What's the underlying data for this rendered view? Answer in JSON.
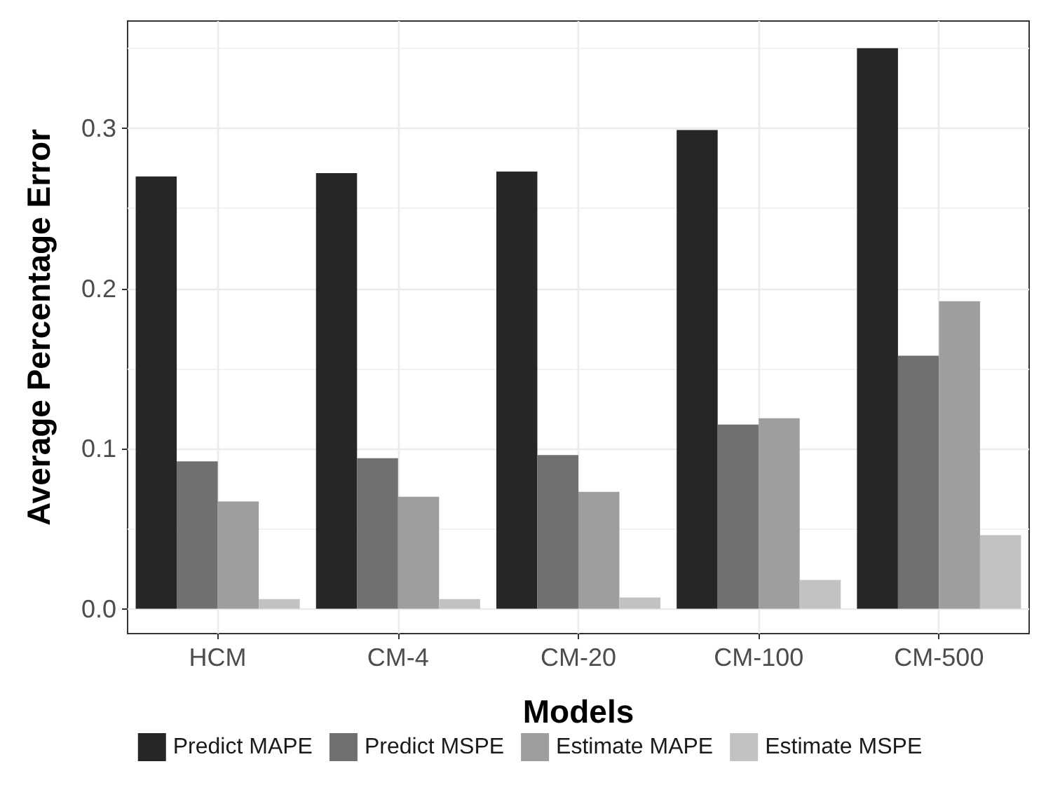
{
  "chart_data": {
    "type": "bar",
    "xlabel": "Models",
    "ylabel": "Average Percentage Error",
    "categories": [
      "HCM",
      "CM-4",
      "CM-20",
      "CM-100",
      "CM-500"
    ],
    "series": [
      {
        "name": "Predict MAPE",
        "color": "#262626",
        "values": [
          0.27,
          0.272,
          0.273,
          0.299,
          0.35
        ]
      },
      {
        "name": "Predict MSPE",
        "color": "#707070",
        "values": [
          0.092,
          0.094,
          0.096,
          0.115,
          0.158
        ]
      },
      {
        "name": "Estimate MAPE",
        "color": "#9e9e9e",
        "values": [
          0.067,
          0.07,
          0.073,
          0.119,
          0.192
        ]
      },
      {
        "name": "Estimate MSPE",
        "color": "#c2c2c2",
        "values": [
          0.006,
          0.006,
          0.007,
          0.018,
          0.046
        ]
      }
    ],
    "ylim": [
      -0.0155,
      0.367
    ],
    "yticks": [
      {
        "value": 0,
        "label": "0.0"
      },
      {
        "value": 0.1,
        "label": "0.1"
      },
      {
        "value": 0.2,
        "label": "0.2"
      },
      {
        "value": 0.3,
        "label": "0.3"
      }
    ],
    "grid": true,
    "legend": "bottom"
  }
}
